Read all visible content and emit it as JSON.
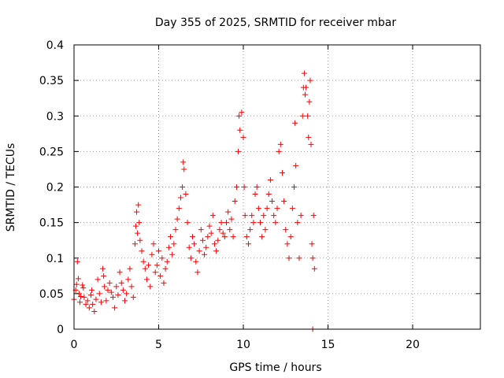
{
  "chart_data": {
    "type": "scatter",
    "title": "Day 355 of 2025, SRMTID for receiver mbar",
    "xlabel": "GPS time / hours",
    "ylabel": "SRMTID / TECUs",
    "xlim": [
      0,
      24
    ],
    "ylim": [
      0,
      0.4
    ],
    "x_ticks": [
      0,
      5,
      10,
      15,
      20
    ],
    "x_tick_labels": [
      "0",
      "5",
      "10",
      "15",
      "20"
    ],
    "y_ticks": [
      0,
      0.05,
      0.1,
      0.15,
      0.2,
      0.25,
      0.3,
      0.35,
      0.4
    ],
    "y_tick_labels": [
      "0",
      "0.05",
      "0.1",
      "0.15",
      "0.2",
      "0.25",
      "0.3",
      "0.35",
      "0.4"
    ],
    "grid": true,
    "marker": "plus",
    "colors": {
      "series": "#ff0000",
      "grid": "#a0a0a0",
      "axis": "#000000"
    },
    "series": [
      {
        "name": "SRMTID",
        "points": [
          [
            0.0,
            0.042
          ],
          [
            0.1,
            0.055
          ],
          [
            0.15,
            0.063
          ],
          [
            0.2,
            0.095
          ],
          [
            0.25,
            0.071
          ],
          [
            0.3,
            0.05
          ],
          [
            0.35,
            0.038
          ],
          [
            0.4,
            0.046
          ],
          [
            0.5,
            0.062
          ],
          [
            0.55,
            0.058
          ],
          [
            0.6,
            0.045
          ],
          [
            0.7,
            0.035
          ],
          [
            0.8,
            0.04
          ],
          [
            0.9,
            0.03
          ],
          [
            1.0,
            0.048
          ],
          [
            1.05,
            0.055
          ],
          [
            1.1,
            0.035
          ],
          [
            1.2,
            0.025
          ],
          [
            1.3,
            0.042
          ],
          [
            1.4,
            0.07
          ],
          [
            1.5,
            0.05
          ],
          [
            1.6,
            0.038
          ],
          [
            1.7,
            0.085
          ],
          [
            1.75,
            0.075
          ],
          [
            1.8,
            0.06
          ],
          [
            1.9,
            0.04
          ],
          [
            2.0,
            0.055
          ],
          [
            2.1,
            0.065
          ],
          [
            2.2,
            0.052
          ],
          [
            2.3,
            0.045
          ],
          [
            2.4,
            0.03
          ],
          [
            2.5,
            0.06
          ],
          [
            2.6,
            0.048
          ],
          [
            2.7,
            0.08
          ],
          [
            2.8,
            0.065
          ],
          [
            2.9,
            0.055
          ],
          [
            3.0,
            0.04
          ],
          [
            3.1,
            0.05
          ],
          [
            3.2,
            0.07
          ],
          [
            3.3,
            0.085
          ],
          [
            3.4,
            0.06
          ],
          [
            3.5,
            0.045
          ],
          [
            3.6,
            0.12
          ],
          [
            3.65,
            0.145
          ],
          [
            3.7,
            0.165
          ],
          [
            3.75,
            0.135
          ],
          [
            3.8,
            0.175
          ],
          [
            3.85,
            0.15
          ],
          [
            3.9,
            0.125
          ],
          [
            4.0,
            0.11
          ],
          [
            4.1,
            0.095
          ],
          [
            4.2,
            0.085
          ],
          [
            4.3,
            0.07
          ],
          [
            4.4,
            0.09
          ],
          [
            4.5,
            0.06
          ],
          [
            4.6,
            0.105
          ],
          [
            4.7,
            0.12
          ],
          [
            4.8,
            0.08
          ],
          [
            4.9,
            0.09
          ],
          [
            5.0,
            0.11
          ],
          [
            5.1,
            0.075
          ],
          [
            5.2,
            0.1
          ],
          [
            5.3,
            0.065
          ],
          [
            5.4,
            0.085
          ],
          [
            5.5,
            0.095
          ],
          [
            5.6,
            0.115
          ],
          [
            5.7,
            0.13
          ],
          [
            5.8,
            0.105
          ],
          [
            5.9,
            0.12
          ],
          [
            6.0,
            0.14
          ],
          [
            6.1,
            0.155
          ],
          [
            6.2,
            0.17
          ],
          [
            6.3,
            0.185
          ],
          [
            6.4,
            0.2
          ],
          [
            6.45,
            0.235
          ],
          [
            6.5,
            0.225
          ],
          [
            6.6,
            0.19
          ],
          [
            6.7,
            0.15
          ],
          [
            6.8,
            0.115
          ],
          [
            6.9,
            0.1
          ],
          [
            7.0,
            0.13
          ],
          [
            7.1,
            0.12
          ],
          [
            7.2,
            0.095
          ],
          [
            7.3,
            0.08
          ],
          [
            7.4,
            0.11
          ],
          [
            7.5,
            0.14
          ],
          [
            7.6,
            0.125
          ],
          [
            7.7,
            0.105
          ],
          [
            7.8,
            0.115
          ],
          [
            7.9,
            0.13
          ],
          [
            8.0,
            0.145
          ],
          [
            8.1,
            0.135
          ],
          [
            8.2,
            0.16
          ],
          [
            8.3,
            0.12
          ],
          [
            8.4,
            0.11
          ],
          [
            8.5,
            0.125
          ],
          [
            8.6,
            0.14
          ],
          [
            8.7,
            0.15
          ],
          [
            8.8,
            0.135
          ],
          [
            8.9,
            0.13
          ],
          [
            9.0,
            0.15
          ],
          [
            9.1,
            0.165
          ],
          [
            9.2,
            0.14
          ],
          [
            9.3,
            0.155
          ],
          [
            9.4,
            0.13
          ],
          [
            9.5,
            0.18
          ],
          [
            9.6,
            0.2
          ],
          [
            9.7,
            0.25
          ],
          [
            9.75,
            0.3
          ],
          [
            9.8,
            0.28
          ],
          [
            9.9,
            0.305
          ],
          [
            10.0,
            0.27
          ],
          [
            10.05,
            0.2
          ],
          [
            10.1,
            0.16
          ],
          [
            10.2,
            0.13
          ],
          [
            10.3,
            0.12
          ],
          [
            10.4,
            0.14
          ],
          [
            10.5,
            0.16
          ],
          [
            10.6,
            0.15
          ],
          [
            10.7,
            0.19
          ],
          [
            10.8,
            0.2
          ],
          [
            10.9,
            0.17
          ],
          [
            11.0,
            0.15
          ],
          [
            11.1,
            0.13
          ],
          [
            11.2,
            0.16
          ],
          [
            11.3,
            0.14
          ],
          [
            11.4,
            0.17
          ],
          [
            11.5,
            0.19
          ],
          [
            11.6,
            0.21
          ],
          [
            11.7,
            0.18
          ],
          [
            11.8,
            0.16
          ],
          [
            11.9,
            0.15
          ],
          [
            12.0,
            0.17
          ],
          [
            12.1,
            0.25
          ],
          [
            12.2,
            0.26
          ],
          [
            12.3,
            0.22
          ],
          [
            12.4,
            0.18
          ],
          [
            12.5,
            0.14
          ],
          [
            12.6,
            0.12
          ],
          [
            12.7,
            0.1
          ],
          [
            12.8,
            0.13
          ],
          [
            12.9,
            0.17
          ],
          [
            13.0,
            0.2
          ],
          [
            13.05,
            0.29
          ],
          [
            13.1,
            0.23
          ],
          [
            13.2,
            0.15
          ],
          [
            13.3,
            0.1
          ],
          [
            13.4,
            0.16
          ],
          [
            13.5,
            0.3
          ],
          [
            13.55,
            0.34
          ],
          [
            13.6,
            0.36
          ],
          [
            13.65,
            0.33
          ],
          [
            13.7,
            0.34
          ],
          [
            13.8,
            0.3
          ],
          [
            13.85,
            0.27
          ],
          [
            13.9,
            0.32
          ],
          [
            13.95,
            0.35
          ],
          [
            14.0,
            0.26
          ],
          [
            14.05,
            0.12
          ],
          [
            14.1,
            0.1
          ],
          [
            14.15,
            0.16
          ],
          [
            14.2,
            0.085
          ],
          [
            14.1,
            0.0
          ]
        ]
      }
    ]
  }
}
